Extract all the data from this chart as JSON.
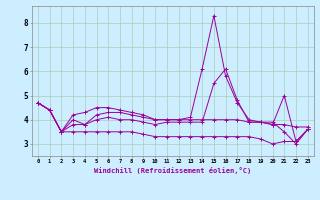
{
  "xlabel": "Windchill (Refroidissement éolien,°C)",
  "bg_color": "#cceeff",
  "line_color": "#990099",
  "grid_color": "#aaccbb",
  "xlim": [
    -0.5,
    23.5
  ],
  "ylim": [
    2.5,
    8.7
  ],
  "xticks": [
    0,
    1,
    2,
    3,
    4,
    5,
    6,
    7,
    8,
    9,
    10,
    11,
    12,
    13,
    14,
    15,
    16,
    17,
    18,
    19,
    20,
    21,
    22,
    23
  ],
  "yticks": [
    3,
    4,
    5,
    6,
    7,
    8
  ],
  "series": [
    [
      4.7,
      4.4,
      3.5,
      4.2,
      4.3,
      4.5,
      4.5,
      4.4,
      4.3,
      4.2,
      4.0,
      4.0,
      4.0,
      4.1,
      6.1,
      8.3,
      5.8,
      4.7,
      4.0,
      3.9,
      3.8,
      5.0,
      3.1,
      3.6
    ],
    [
      4.7,
      4.4,
      3.5,
      4.0,
      3.8,
      4.2,
      4.3,
      4.3,
      4.2,
      4.1,
      4.0,
      4.0,
      4.0,
      4.0,
      4.0,
      4.0,
      4.0,
      4.0,
      3.9,
      3.9,
      3.8,
      3.8,
      3.7,
      3.7
    ],
    [
      4.7,
      4.4,
      3.5,
      3.5,
      3.5,
      3.5,
      3.5,
      3.5,
      3.5,
      3.4,
      3.3,
      3.3,
      3.3,
      3.3,
      3.3,
      3.3,
      3.3,
      3.3,
      3.3,
      3.2,
      3.0,
      3.1,
      3.1,
      3.6
    ],
    [
      4.7,
      4.4,
      3.5,
      3.8,
      3.8,
      4.0,
      4.1,
      4.0,
      4.0,
      3.9,
      3.8,
      3.9,
      3.9,
      3.9,
      3.9,
      5.5,
      6.1,
      4.8,
      3.9,
      3.9,
      3.9,
      3.5,
      3.0,
      3.6
    ]
  ]
}
